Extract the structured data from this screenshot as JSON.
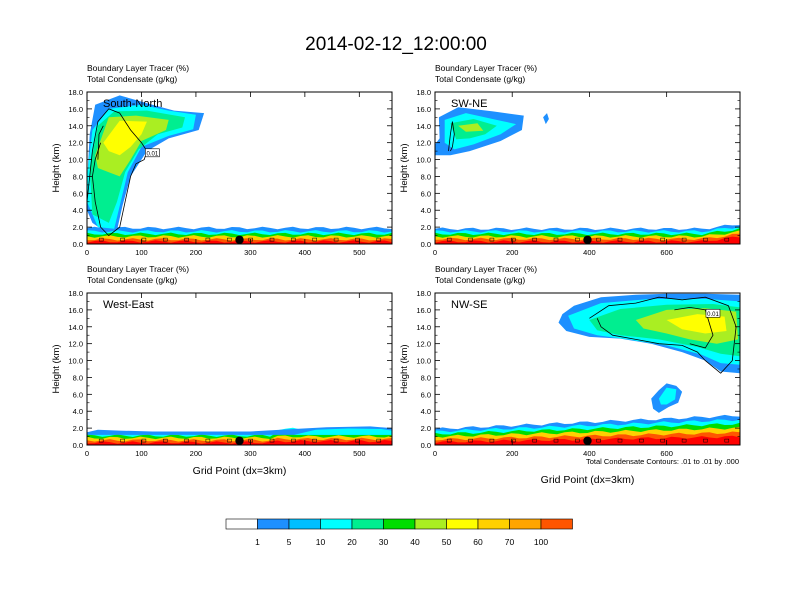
{
  "title": "2014-02-12_12:00:00",
  "colorbar": {
    "levels": [
      "1",
      "5",
      "10",
      "20",
      "30",
      "40",
      "50",
      "60",
      "70",
      "100"
    ],
    "colors": [
      "#ffffff",
      "#1e90ff",
      "#00bfff",
      "#00ffff",
      "#00ee90",
      "#00dd00",
      "#aaee22",
      "#ffff00",
      "#ffd000",
      "#ffa500",
      "#ff5500",
      "#ff0000"
    ]
  },
  "contour_note": "Total Condensate Contours: .01 to .01 by .000",
  "contour_label": "0.01",
  "chart_data": [
    {
      "type": "heatmap",
      "panel": "South-North",
      "title_line1": "Boundary Layer Tracer   (%)",
      "title_line2": "Total Condensate   (g/kg)",
      "ylabel": "Height (km)",
      "xlabel": "",
      "xlim": [
        0,
        560
      ],
      "ylim": [
        0,
        18
      ],
      "xticks": [
        0,
        100,
        200,
        300,
        400,
        500
      ],
      "yticks": [
        "0.0",
        "2.0",
        "4.0",
        "6.0",
        "8.0",
        "10.0",
        "12.0",
        "14.0",
        "16.0",
        "18.0"
      ],
      "marker_x": 280
    },
    {
      "type": "heatmap",
      "panel": "SW-NE",
      "title_line1": "Boundary Layer Tracer   (%)",
      "title_line2": "Total Condensate   (g/kg)",
      "ylabel": "Height (km)",
      "xlabel": "",
      "xlim": [
        0,
        790
      ],
      "ylim": [
        0,
        18
      ],
      "xticks": [
        0,
        200,
        400,
        600
      ],
      "yticks": [
        "0.0",
        "2.0",
        "4.0",
        "6.0",
        "8.0",
        "10.0",
        "12.0",
        "14.0",
        "16.0",
        "18.0"
      ],
      "marker_x": 395
    },
    {
      "type": "heatmap",
      "panel": "West-East",
      "title_line1": "Boundary Layer Tracer   (%)",
      "title_line2": "Total Condensate   (g/kg)",
      "ylabel": "Height (km)",
      "xlabel": "Grid Point (dx=3km)",
      "xlim": [
        0,
        560
      ],
      "ylim": [
        0,
        18
      ],
      "xticks": [
        0,
        100,
        200,
        300,
        400,
        500
      ],
      "yticks": [
        "0.0",
        "2.0",
        "4.0",
        "6.0",
        "8.0",
        "10.0",
        "12.0",
        "14.0",
        "16.0",
        "18.0"
      ],
      "marker_x": 280
    },
    {
      "type": "heatmap",
      "panel": "NW-SE",
      "title_line1": "Boundary Layer Tracer   (%)",
      "title_line2": "Total Condensate   (g/kg)",
      "ylabel": "Height (km)",
      "xlabel": "Grid Point (dx=3km)",
      "xlim": [
        0,
        790
      ],
      "ylim": [
        0,
        18
      ],
      "xticks": [
        0,
        200,
        400,
        600
      ],
      "yticks": [
        "0.0",
        "2.0",
        "4.0",
        "6.0",
        "8.0",
        "10.0",
        "12.0",
        "14.0",
        "16.0",
        "18.0"
      ],
      "marker_x": 395
    }
  ]
}
